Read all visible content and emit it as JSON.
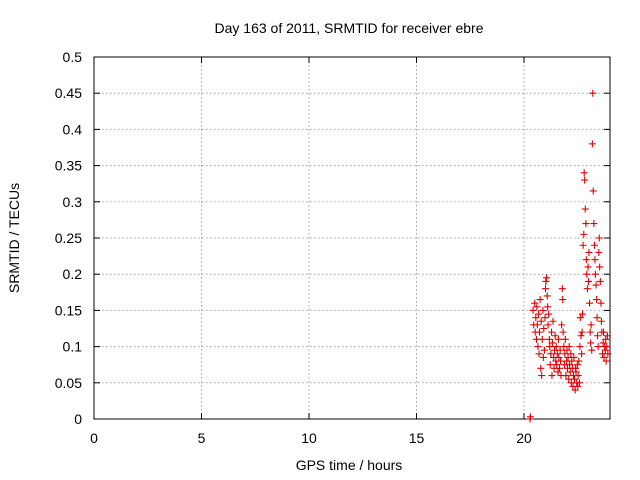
{
  "chart_data": {
    "type": "scatter",
    "title": "Day 163 of 2011, SRMTID for receiver ebre",
    "xlabel": "GPS time / hours",
    "ylabel": "SRMTID / TECUs",
    "xlim": [
      0,
      24
    ],
    "ylim": [
      0,
      0.5
    ],
    "xticks": [
      0,
      5,
      10,
      15,
      20
    ],
    "yticks": [
      0,
      0.05,
      0.1,
      0.15,
      0.2,
      0.25,
      0.3,
      0.35,
      0.4,
      0.45,
      0.5
    ],
    "grid": true,
    "marker": "+",
    "series": [
      {
        "color": "#e00000",
        "points": [
          [
            20.28,
            0.0
          ],
          [
            20.3,
            0.003
          ],
          [
            20.42,
            0.15
          ],
          [
            20.45,
            0.13
          ],
          [
            20.5,
            0.16
          ],
          [
            20.52,
            0.12
          ],
          [
            20.55,
            0.14
          ],
          [
            20.58,
            0.11
          ],
          [
            20.6,
            0.155
          ],
          [
            20.62,
            0.13
          ],
          [
            20.65,
            0.1
          ],
          [
            20.68,
            0.145
          ],
          [
            20.7,
            0.09
          ],
          [
            20.72,
            0.12
          ],
          [
            20.75,
            0.165
          ],
          [
            20.78,
            0.07
          ],
          [
            20.8,
            0.135
          ],
          [
            20.82,
            0.06
          ],
          [
            20.85,
            0.11
          ],
          [
            20.88,
            0.15
          ],
          [
            20.9,
            0.085
          ],
          [
            20.92,
            0.125
          ],
          [
            20.95,
            0.095
          ],
          [
            20.98,
            0.14
          ],
          [
            21.0,
            0.18
          ],
          [
            21.02,
            0.19
          ],
          [
            21.05,
            0.195
          ],
          [
            21.08,
            0.17
          ],
          [
            21.1,
            0.155
          ],
          [
            21.12,
            0.13
          ],
          [
            21.15,
            0.145
          ],
          [
            21.18,
            0.11
          ],
          [
            21.2,
            0.1
          ],
          [
            21.22,
            0.075
          ],
          [
            21.25,
            0.09
          ],
          [
            21.28,
            0.12
          ],
          [
            21.3,
            0.06
          ],
          [
            21.32,
            0.105
          ],
          [
            21.35,
            0.135
          ],
          [
            21.38,
            0.085
          ],
          [
            21.4,
            0.07
          ],
          [
            21.42,
            0.095
          ],
          [
            21.45,
            0.115
          ],
          [
            21.48,
            0.08
          ],
          [
            21.5,
            0.1
          ],
          [
            21.52,
            0.075
          ],
          [
            21.55,
            0.09
          ],
          [
            21.58,
            0.065
          ],
          [
            21.6,
            0.11
          ],
          [
            21.62,
            0.085
          ],
          [
            21.65,
            0.07
          ],
          [
            21.68,
            0.095
          ],
          [
            21.7,
            0.08
          ],
          [
            21.72,
            0.06
          ],
          [
            21.75,
            0.13
          ],
          [
            21.78,
            0.18
          ],
          [
            21.8,
            0.165
          ],
          [
            21.82,
            0.12
          ],
          [
            21.85,
            0.1
          ],
          [
            21.88,
            0.075
          ],
          [
            21.9,
            0.09
          ],
          [
            21.92,
            0.11
          ],
          [
            21.95,
            0.06
          ],
          [
            21.98,
            0.08
          ],
          [
            22.0,
            0.095
          ],
          [
            22.02,
            0.07
          ],
          [
            22.05,
            0.085
          ],
          [
            22.08,
            0.055
          ],
          [
            22.1,
            0.1
          ],
          [
            22.12,
            0.075
          ],
          [
            22.15,
            0.065
          ],
          [
            22.18,
            0.09
          ],
          [
            22.2,
            0.05
          ],
          [
            22.22,
            0.08
          ],
          [
            22.25,
            0.07
          ],
          [
            22.28,
            0.045
          ],
          [
            22.3,
            0.06
          ],
          [
            22.32,
            0.085
          ],
          [
            22.35,
            0.055
          ],
          [
            22.38,
            0.04
          ],
          [
            22.4,
            0.07
          ],
          [
            22.42,
            0.065
          ],
          [
            22.45,
            0.05
          ],
          [
            22.48,
            0.075
          ],
          [
            22.5,
            0.045
          ],
          [
            22.52,
            0.06
          ],
          [
            22.55,
            0.08
          ],
          [
            22.58,
            0.05
          ],
          [
            22.6,
            0.1
          ],
          [
            22.62,
            0.14
          ],
          [
            22.65,
            0.115
          ],
          [
            22.68,
            0.09
          ],
          [
            22.7,
            0.12
          ],
          [
            22.72,
            0.145
          ],
          [
            22.75,
            0.24
          ],
          [
            22.78,
            0.255
          ],
          [
            22.8,
            0.34
          ],
          [
            22.82,
            0.33
          ],
          [
            22.85,
            0.29
          ],
          [
            22.88,
            0.27
          ],
          [
            22.9,
            0.22
          ],
          [
            22.92,
            0.2
          ],
          [
            22.95,
            0.18
          ],
          [
            22.98,
            0.21
          ],
          [
            23.0,
            0.19
          ],
          [
            23.02,
            0.23
          ],
          [
            23.05,
            0.16
          ],
          [
            23.08,
            0.12
          ],
          [
            23.1,
            0.105
          ],
          [
            23.12,
            0.13
          ],
          [
            23.15,
            0.095
          ],
          [
            23.18,
            0.38
          ],
          [
            23.2,
            0.45
          ],
          [
            23.22,
            0.315
          ],
          [
            23.25,
            0.27
          ],
          [
            23.28,
            0.24
          ],
          [
            23.3,
            0.22
          ],
          [
            23.32,
            0.2
          ],
          [
            23.35,
            0.185
          ],
          [
            23.38,
            0.165
          ],
          [
            23.4,
            0.14
          ],
          [
            23.42,
            0.115
          ],
          [
            23.45,
            0.1
          ],
          [
            23.48,
            0.23
          ],
          [
            23.5,
            0.25
          ],
          [
            23.52,
            0.21
          ],
          [
            23.55,
            0.19
          ],
          [
            23.58,
            0.16
          ],
          [
            23.6,
            0.135
          ],
          [
            23.62,
            0.12
          ],
          [
            23.65,
            0.09
          ],
          [
            23.68,
            0.105
          ],
          [
            23.7,
            0.12
          ],
          [
            23.72,
            0.085
          ],
          [
            23.75,
            0.1
          ],
          [
            23.78,
            0.095
          ],
          [
            23.8,
            0.11
          ],
          [
            23.82,
            0.08
          ],
          [
            23.85,
            0.1
          ],
          [
            23.88,
            0.115
          ],
          [
            23.9,
            0.09
          ]
        ]
      }
    ]
  }
}
